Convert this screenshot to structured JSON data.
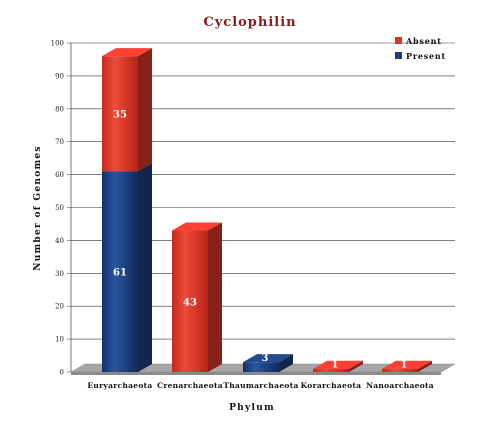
{
  "chart_data": {
    "type": "bar",
    "stacked": true,
    "title": "Cyclophilin",
    "xlabel": "Phylum",
    "ylabel": "Number of Genomes",
    "ylim": [
      0,
      100
    ],
    "yticks": [
      0,
      10,
      20,
      30,
      40,
      50,
      60,
      70,
      80,
      90,
      100
    ],
    "categories": [
      "Euryarchaeota",
      "Crenarchaeota",
      "Thaumarchaeota",
      "Korarchaeota",
      "Nanoarchaeota"
    ],
    "series": [
      {
        "name": "Present",
        "values": [
          61,
          0,
          3,
          0,
          0
        ]
      },
      {
        "name": "Absent",
        "values": [
          35,
          43,
          0,
          1,
          1
        ]
      }
    ],
    "grid": true,
    "legend_position": "top-right",
    "colors": {
      "Present": "#1f3f7a",
      "Absent": "#d9362a",
      "title": "#8b1a1a",
      "floor": "#a6a6a6"
    }
  }
}
